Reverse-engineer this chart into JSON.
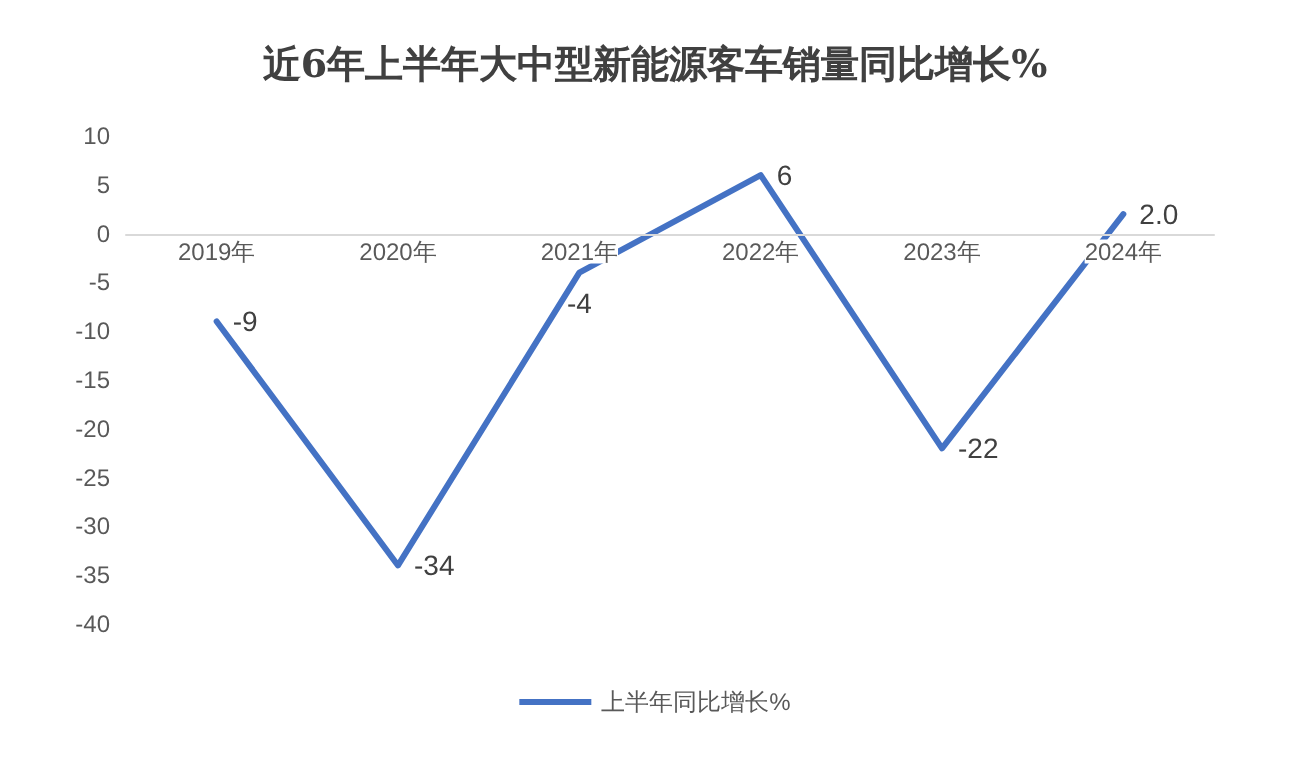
{
  "chart_data": {
    "type": "line",
    "title": "近6年上半年大中型新能源客车销量同比增长%",
    "categories": [
      "2019年",
      "2020年",
      "2021年",
      "2022年",
      "2023年",
      "2024年"
    ],
    "series": [
      {
        "name": "上半年同比增长%",
        "color": "#4472c4",
        "values": [
          -9,
          -34,
          -4,
          6,
          -22,
          2.0
        ],
        "value_labels": [
          "-9",
          "-34",
          "-4",
          "6",
          "-22",
          "2.0"
        ]
      }
    ],
    "ylim": [
      -40,
      10
    ],
    "yticks": [
      -40,
      -35,
      -30,
      -25,
      -20,
      -15,
      -10,
      -5,
      0,
      5,
      10
    ],
    "grid": false,
    "legend": "bottom",
    "marker": "none",
    "line_style": "solid"
  }
}
